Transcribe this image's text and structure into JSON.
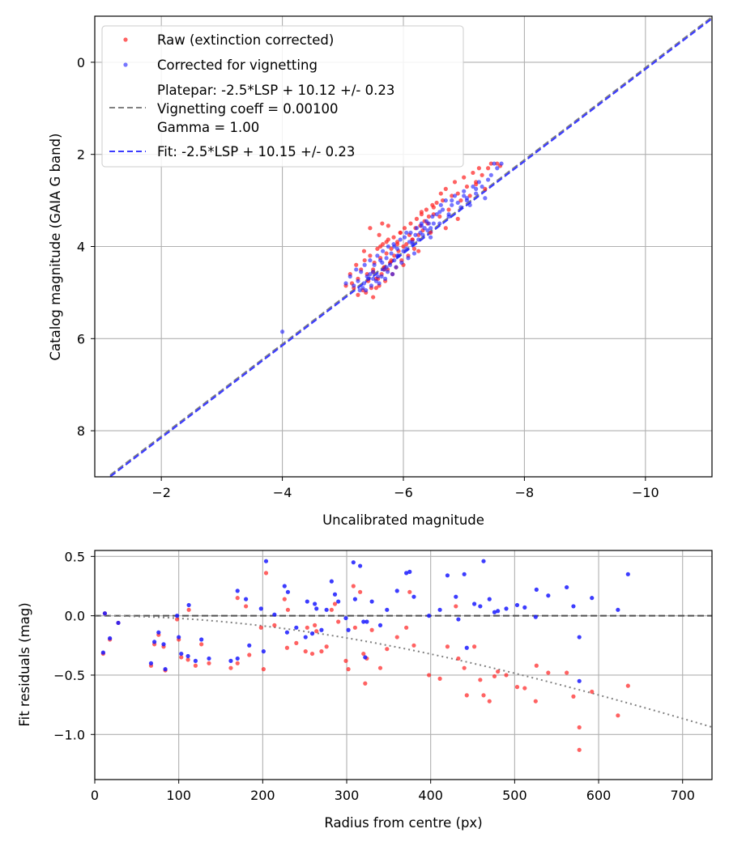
{
  "colors": {
    "raw": "#ff2020",
    "corrected": "#1a1aff",
    "platepar_line": "#808080",
    "fit_line": "#3b3bff",
    "grid": "#b0b0b0",
    "zero_line": "#505050",
    "model_curve": "#808080"
  },
  "chart_data": [
    {
      "type": "scatter",
      "title": "",
      "xlabel": "Uncalibrated magnitude",
      "ylabel": "Catalog magnitude (GAIA G band)",
      "xlim": [
        -0.9,
        -11.1
      ],
      "ylim": [
        9.0,
        -1.0
      ],
      "x_ticks": [
        -2,
        -4,
        -6,
        -8,
        -10
      ],
      "x_tick_labels": [
        "−2",
        "−4",
        "−6",
        "−8",
        "−10"
      ],
      "y_ticks": [
        0,
        2,
        4,
        6,
        8
      ],
      "y_tick_labels": [
        "0",
        "2",
        "4",
        "6",
        "8"
      ],
      "grid": true,
      "legend_position": "top-left",
      "legend": {
        "raw": "Raw (extinction corrected)",
        "corrected": "Corrected for vignetting",
        "platepar": [
          "Platepar: -2.5*LSP + 10.12 +/- 0.23",
          "Vignetting coeff = 0.00100",
          "Gamma = 1.00"
        ],
        "fit": "Fit: -2.5*LSP + 10.15 +/- 0.23"
      },
      "lines": [
        {
          "name": "platepar",
          "style": "dashed",
          "slope": 1.0,
          "intercept": 10.12
        },
        {
          "name": "fit",
          "style": "dashed",
          "slope": 1.0,
          "intercept": 10.15
        }
      ],
      "series": [
        {
          "name": "raw",
          "x": [
            -5.05,
            -5.12,
            -5.18,
            -5.22,
            -5.25,
            -5.3,
            -5.33,
            -5.36,
            -5.38,
            -5.4,
            -5.42,
            -5.45,
            -5.47,
            -5.5,
            -5.5,
            -5.52,
            -5.55,
            -5.57,
            -5.6,
            -5.62,
            -5.64,
            -5.66,
            -5.68,
            -5.7,
            -5.72,
            -5.74,
            -5.75,
            -5.78,
            -5.8,
            -5.82,
            -5.84,
            -5.85,
            -5.88,
            -5.9,
            -5.92,
            -5.95,
            -5.97,
            -6.0,
            -6.02,
            -6.05,
            -6.08,
            -6.1,
            -6.12,
            -6.15,
            -6.18,
            -6.2,
            -6.22,
            -6.25,
            -6.28,
            -6.3,
            -6.32,
            -6.35,
            -6.38,
            -6.4,
            -6.42,
            -6.45,
            -6.48,
            -6.5,
            -6.55,
            -6.6,
            -6.62,
            -6.65,
            -6.7,
            -6.75,
            -6.8,
            -6.85,
            -6.9,
            -6.95,
            -7.0,
            -7.05,
            -7.1,
            -7.15,
            -7.2,
            -7.25,
            -7.3,
            -7.35,
            -7.4,
            -7.45,
            -7.55,
            -7.6,
            -5.45,
            -5.6,
            -5.65,
            -5.75,
            -5.55,
            -5.35,
            -5.9,
            -6.0,
            -6.15,
            -6.3,
            -6.5,
            -6.7,
            -5.25,
            -5.15,
            -5.58,
            -5.68,
            -5.8,
            -6.25,
            -6.9,
            -7.2,
            -5.5,
            -5.62,
            -5.72,
            -5.95
          ],
          "y": [
            4.85,
            4.6,
            4.9,
            4.4,
            4.7,
            4.5,
            4.95,
            4.3,
            5.0,
            4.6,
            4.75,
            4.2,
            4.9,
            4.5,
            5.1,
            4.35,
            4.7,
            4.05,
            4.85,
            4.25,
            4.6,
            3.95,
            4.45,
            4.75,
            4.15,
            4.5,
            3.85,
            4.35,
            4.05,
            4.6,
            3.8,
            4.2,
            4.45,
            3.9,
            4.1,
            3.7,
            4.3,
            4.0,
            3.6,
            3.95,
            4.2,
            3.75,
            3.5,
            3.85,
            4.05,
            3.6,
            3.4,
            3.75,
            3.55,
            3.3,
            3.65,
            3.45,
            3.2,
            3.5,
            3.35,
            3.7,
            3.1,
            3.3,
            3.05,
            3.35,
            2.85,
            3.0,
            2.75,
            3.2,
            2.9,
            2.6,
            2.85,
            3.0,
            2.5,
            2.7,
            2.9,
            2.4,
            2.6,
            2.3,
            2.45,
            2.75,
            2.3,
            2.2,
            2.2,
            2.25,
            3.6,
            3.75,
            3.5,
            3.55,
            4.9,
            4.1,
            3.95,
            4.4,
            3.85,
            3.25,
            3.15,
            3.6,
            5.05,
            4.8,
            4.7,
            4.5,
            4.3,
            4.1,
            3.4,
            2.65,
            4.55,
            4.0,
            3.9,
            3.7
          ]
        },
        {
          "name": "corrected",
          "x": [
            -4.0,
            -5.05,
            -5.12,
            -5.18,
            -5.22,
            -5.25,
            -5.3,
            -5.33,
            -5.36,
            -5.38,
            -5.4,
            -5.42,
            -5.45,
            -5.47,
            -5.5,
            -5.52,
            -5.55,
            -5.57,
            -5.6,
            -5.62,
            -5.64,
            -5.66,
            -5.68,
            -5.7,
            -5.72,
            -5.74,
            -5.75,
            -5.78,
            -5.8,
            -5.82,
            -5.84,
            -5.85,
            -5.88,
            -5.9,
            -5.92,
            -5.95,
            -5.97,
            -6.0,
            -6.02,
            -6.05,
            -6.08,
            -6.1,
            -6.12,
            -6.15,
            -6.18,
            -6.2,
            -6.22,
            -6.25,
            -6.28,
            -6.3,
            -6.32,
            -6.35,
            -6.38,
            -6.4,
            -6.42,
            -6.45,
            -6.48,
            -6.5,
            -6.55,
            -6.6,
            -6.62,
            -6.65,
            -6.7,
            -6.75,
            -6.8,
            -6.85,
            -6.9,
            -6.95,
            -7.0,
            -7.05,
            -7.1,
            -7.15,
            -7.2,
            -7.25,
            -7.3,
            -7.35,
            -7.4,
            -7.45,
            -7.5,
            -7.55,
            -7.62,
            -5.28,
            -5.45,
            -5.65,
            -5.85,
            -6.05,
            -6.3,
            -6.6,
            -6.8,
            -7.0,
            -7.2,
            -5.58,
            -5.72,
            -5.9,
            -6.15,
            -6.45,
            -6.75,
            -7.05,
            -5.35,
            -5.5
          ],
          "y": [
            5.85,
            4.8,
            4.65,
            4.85,
            4.5,
            4.75,
            4.55,
            4.9,
            4.4,
            4.95,
            4.65,
            4.7,
            4.3,
            4.85,
            4.55,
            4.4,
            4.75,
            4.2,
            4.8,
            4.3,
            4.65,
            4.1,
            4.5,
            4.7,
            4.25,
            4.55,
            4.0,
            4.4,
            4.15,
            4.6,
            3.95,
            4.3,
            4.45,
            4.05,
            4.2,
            3.85,
            4.35,
            4.1,
            3.8,
            4.05,
            4.25,
            3.9,
            3.7,
            3.95,
            4.15,
            3.75,
            3.6,
            3.85,
            3.7,
            3.5,
            3.75,
            3.6,
            3.45,
            3.65,
            3.5,
            3.8,
            3.35,
            3.5,
            3.3,
            3.5,
            3.1,
            3.2,
            3.0,
            3.35,
            3.1,
            2.9,
            3.05,
            3.15,
            2.8,
            2.95,
            3.1,
            2.7,
            2.85,
            2.6,
            2.7,
            2.95,
            2.55,
            2.45,
            2.2,
            2.3,
            2.2,
            4.95,
            4.6,
            4.35,
            4.0,
            3.7,
            3.55,
            3.25,
            3.0,
            2.9,
            2.75,
            4.65,
            4.45,
            4.2,
            3.9,
            3.6,
            3.3,
            3.0,
            4.8,
            4.7
          ]
        }
      ]
    },
    {
      "type": "scatter",
      "title": "",
      "xlabel": "Radius from centre (px)",
      "ylabel": "Fit residuals (mag)",
      "xlim": [
        0,
        735
      ],
      "ylim": [
        -1.38,
        0.55
      ],
      "x_ticks": [
        0,
        100,
        200,
        300,
        400,
        500,
        600,
        700
      ],
      "x_tick_labels": [
        "0",
        "100",
        "200",
        "300",
        "400",
        "500",
        "600",
        "700"
      ],
      "y_ticks": [
        0.5,
        0.0,
        -0.5,
        -1.0
      ],
      "y_tick_labels": [
        "0.5",
        "0.0",
        "−0.5",
        "−1.0"
      ],
      "grid": true,
      "zero_line": {
        "style": "dashed",
        "y": 0.0
      },
      "model_curve": {
        "style": "dotted",
        "coeff": 0.001,
        "description": "-2.5*log10(cos^4(atan(coeff*r)))"
      },
      "series": [
        {
          "name": "raw",
          "x": [
            10,
            12,
            18,
            28,
            67,
            71,
            76,
            82,
            84,
            98,
            100,
            103,
            111,
            112,
            120,
            127,
            136,
            162,
            170,
            170,
            180,
            184,
            198,
            201,
            204,
            214,
            226,
            229,
            230,
            240,
            251,
            253,
            259,
            262,
            264,
            270,
            276,
            282,
            286,
            290,
            299,
            302,
            308,
            310,
            316,
            320,
            322,
            324,
            330,
            340,
            348,
            360,
            371,
            375,
            380,
            398,
            411,
            420,
            430,
            433,
            440,
            443,
            452,
            459,
            463,
            470,
            476,
            480,
            490,
            503,
            512,
            525,
            526,
            540,
            562,
            570,
            577,
            577,
            592,
            623,
            635
          ],
          "x_note": "",
          "y": [
            -0.32,
            0.02,
            -0.2,
            -0.06,
            -0.42,
            -0.24,
            -0.16,
            -0.26,
            -0.46,
            -0.03,
            -0.2,
            -0.35,
            -0.37,
            0.05,
            -0.42,
            -0.24,
            -0.4,
            -0.44,
            0.15,
            -0.4,
            0.08,
            -0.33,
            -0.1,
            -0.45,
            0.36,
            -0.08,
            0.14,
            -0.27,
            0.05,
            -0.23,
            -0.3,
            -0.1,
            -0.32,
            -0.08,
            -0.13,
            -0.3,
            -0.26,
            0.05,
            0.1,
            -0.05,
            -0.38,
            -0.45,
            0.25,
            -0.1,
            0.2,
            -0.32,
            -0.57,
            -0.36,
            -0.12,
            -0.44,
            -0.28,
            -0.18,
            -0.1,
            0.2,
            -0.25,
            -0.5,
            -0.53,
            -0.26,
            0.08,
            -0.36,
            -0.44,
            -0.67,
            -0.26,
            -0.54,
            -0.67,
            -0.72,
            -0.51,
            -0.47,
            -0.5,
            -0.6,
            -0.61,
            -0.72,
            -0.42,
            -0.48,
            -0.48,
            -0.68,
            -1.13,
            -0.94,
            -0.64,
            -0.84,
            -0.59
          ]
        },
        {
          "name": "corrected",
          "x": [
            10,
            12,
            18,
            28,
            67,
            71,
            76,
            82,
            84,
            98,
            100,
            103,
            111,
            112,
            120,
            127,
            136,
            162,
            170,
            170,
            180,
            184,
            198,
            201,
            204,
            214,
            226,
            229,
            230,
            240,
            251,
            253,
            259,
            262,
            264,
            270,
            276,
            282,
            286,
            290,
            299,
            302,
            308,
            310,
            316,
            320,
            322,
            324,
            330,
            340,
            348,
            360,
            371,
            375,
            380,
            398,
            411,
            420,
            430,
            433,
            440,
            443,
            452,
            459,
            463,
            470,
            476,
            480,
            490,
            503,
            512,
            525,
            526,
            540,
            562,
            570,
            577,
            577,
            592,
            623,
            635
          ],
          "y": [
            -0.31,
            0.02,
            -0.19,
            -0.06,
            -0.4,
            -0.22,
            -0.14,
            -0.24,
            -0.45,
            0.0,
            -0.18,
            -0.32,
            -0.34,
            0.09,
            -0.38,
            -0.2,
            -0.36,
            -0.38,
            0.21,
            -0.36,
            0.14,
            -0.25,
            0.06,
            -0.3,
            0.46,
            0.01,
            0.25,
            -0.14,
            0.2,
            -0.1,
            -0.18,
            0.12,
            -0.15,
            0.1,
            0.06,
            -0.12,
            0.05,
            0.29,
            0.18,
            0.12,
            -0.02,
            -0.12,
            0.45,
            0.14,
            0.42,
            -0.05,
            -0.35,
            -0.05,
            0.12,
            -0.08,
            0.05,
            0.21,
            0.36,
            0.37,
            0.16,
            0.0,
            0.05,
            0.34,
            0.16,
            -0.03,
            0.35,
            -0.27,
            0.1,
            0.08,
            0.46,
            0.14,
            0.03,
            0.04,
            0.06,
            0.09,
            0.07,
            -0.01,
            0.22,
            0.17,
            0.24,
            0.08,
            -0.55,
            -0.18,
            0.15,
            0.05,
            0.35
          ]
        }
      ]
    }
  ]
}
